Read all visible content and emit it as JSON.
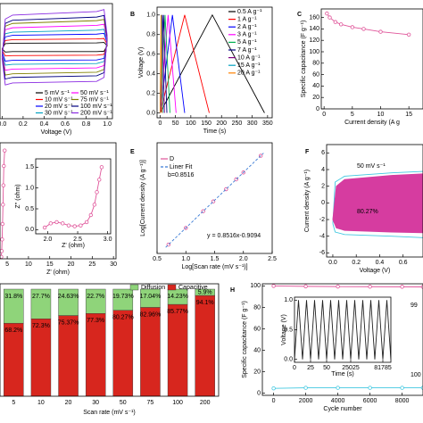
{
  "chart_data": [
    {
      "type": "line",
      "xlabel": "Voltage (V)",
      "xlim": [
        -0.02,
        1.05
      ],
      "ylim": [
        -1.8,
        1.1
      ],
      "xticks": [
        {
          "value": 0,
          "label": "0.0"
        },
        0.2,
        0.4,
        0.6,
        0.8,
        {
          "value": 1,
          "label": "1.0"
        }
      ],
      "x": [
        0,
        0.03,
        0.1,
        0.9,
        0.97,
        1,
        0.97,
        0.9,
        0.1,
        0.03,
        0
      ],
      "series": [
        {
          "name": "5 mV s⁻¹",
          "color": "#000000",
          "values": [
            -0.04,
            0.09,
            0.1,
            0.11,
            0.12,
            0.04,
            -0.1,
            -0.11,
            -0.11,
            -0.12,
            -0.04
          ]
        },
        {
          "name": "10 mV s⁻¹",
          "color": "#ff0000",
          "values": [
            -0.07,
            0.17,
            0.19,
            0.21,
            0.22,
            0.07,
            -0.18,
            -0.2,
            -0.21,
            -0.22,
            -0.07
          ]
        },
        {
          "name": "20 mV s⁻¹",
          "color": "#0000ff",
          "values": [
            -0.11,
            0.26,
            0.3,
            0.33,
            0.35,
            0.11,
            -0.28,
            -0.32,
            -0.33,
            -0.35,
            -0.11
          ]
        },
        {
          "name": "30 mV s⁻¹",
          "color": "#00a0c0",
          "values": [
            -0.14,
            0.34,
            0.38,
            0.43,
            0.45,
            0.14,
            -0.36,
            -0.41,
            -0.43,
            -0.45,
            -0.14
          ]
        },
        {
          "name": "50 mV s⁻¹",
          "color": "#ff00ff",
          "values": [
            -0.17,
            0.44,
            0.49,
            0.55,
            0.58,
            0.17,
            -0.46,
            -0.52,
            -0.55,
            -0.58,
            -0.17
          ]
        },
        {
          "name": "75 mV s⁻¹",
          "color": "#808000",
          "values": [
            -0.21,
            0.53,
            0.6,
            0.67,
            0.7,
            0.21,
            -0.56,
            -0.63,
            -0.67,
            -0.7,
            -0.21
          ]
        },
        {
          "name": "100 mV s⁻¹",
          "color": "#000080",
          "values": [
            -0.24,
            0.6,
            0.68,
            0.76,
            0.8,
            0.24,
            -0.64,
            -0.72,
            -0.76,
            -0.8,
            -0.24
          ]
        },
        {
          "name": "200 mV s⁻¹",
          "color": "#8a2be2",
          "values": [
            -0.29,
            0.71,
            0.81,
            0.9,
            0.95,
            0.29,
            -0.76,
            -0.86,
            -0.9,
            -0.95,
            -0.29
          ]
        }
      ]
    },
    {
      "type": "line",
      "panel_label": "B",
      "xlabel": "Time (s)",
      "ylabel": "Voltage (V)",
      "xlim": [
        -10,
        365
      ],
      "ylim": [
        -0.05,
        1.08
      ],
      "xticks": [
        0,
        50,
        100,
        150,
        200,
        250,
        300,
        350
      ],
      "yticks": [
        {
          "value": 0,
          "label": "0.0"
        },
        0.2,
        0.4,
        0.6,
        0.8,
        {
          "value": 1,
          "label": "1.0"
        }
      ],
      "series": [
        {
          "name": "0.5 A g⁻¹",
          "color": "#000000",
          "x": [
            0,
            170,
            340
          ],
          "values": [
            0,
            1,
            0
          ]
        },
        {
          "name": "1 A g⁻¹",
          "color": "#ff0000",
          "x": [
            0,
            80,
            160
          ],
          "values": [
            0,
            1,
            0
          ]
        },
        {
          "name": "2 A g⁻¹",
          "color": "#0000ff",
          "x": [
            0,
            40,
            80
          ],
          "values": [
            0,
            1,
            0
          ]
        },
        {
          "name": "3 A g⁻¹",
          "color": "#ff00ff",
          "x": [
            0,
            26,
            52
          ],
          "values": [
            0,
            1,
            0
          ]
        },
        {
          "name": "5 A g⁻¹",
          "color": "#00b050",
          "x": [
            0,
            16,
            32
          ],
          "values": [
            0,
            1,
            0
          ]
        },
        {
          "name": "7 A g⁻¹",
          "color": "#000080",
          "x": [
            0,
            11,
            22
          ],
          "values": [
            0,
            1,
            0
          ]
        },
        {
          "name": "10 A g⁻¹",
          "color": "#800080",
          "x": [
            0,
            7,
            14
          ],
          "values": [
            0,
            1,
            0
          ]
        },
        {
          "name": "15 A g⁻¹",
          "color": "#00a0c0",
          "x": [
            0,
            5,
            10
          ],
          "values": [
            0,
            1,
            0
          ]
        },
        {
          "name": "20 A g⁻¹",
          "color": "#ff8000",
          "x": [
            0,
            3,
            6
          ],
          "values": [
            0,
            1,
            0
          ]
        }
      ]
    },
    {
      "type": "line",
      "panel_label": "C",
      "xlabel": "Current density (A g",
      "ylabel": "Specific capacitance (F g⁻¹)",
      "xlim": [
        -0.5,
        17.5
      ],
      "ylim": [
        0,
        175
      ],
      "xticks": [
        0,
        5,
        10,
        15
      ],
      "yticks": [
        0,
        20,
        40,
        60,
        80,
        100,
        120,
        140,
        160
      ],
      "series": [
        {
          "color": "#e0559a",
          "marker": true,
          "x": [
            0.5,
            1,
            2,
            3,
            5,
            7,
            10,
            15
          ],
          "values": [
            167,
            160,
            152,
            148,
            143,
            140,
            135,
            130
          ]
        }
      ]
    },
    {
      "type": "line",
      "xlabel": "Z' (ohm)",
      "xlim": [
        3.3,
        30.6
      ],
      "ylim": [
        0,
        30
      ],
      "xticks": [
        5,
        10,
        15,
        20,
        25,
        30
      ],
      "series": [
        {
          "color": "#e0559a",
          "marker": true,
          "x": [
            3.6,
            3.7,
            3.8,
            3.9,
            4.0,
            4.1,
            4.2,
            4.4
          ],
          "values": [
            0.5,
            2,
            5,
            9,
            14,
            19,
            24,
            28
          ]
        }
      ]
    },
    {
      "type": "line",
      "xlabel": "Z' (ohm)",
      "ylabel": "Z'' (ohm)",
      "xlim": [
        1.8,
        3.05
      ],
      "ylim": [
        -0.1,
        1.7
      ],
      "xticks": [
        {
          "value": 2,
          "label": "2.0"
        },
        2.5,
        {
          "value": 3,
          "label": "3.0"
        }
      ],
      "yticks": [
        {
          "value": 0,
          "label": "0.0"
        },
        0.5,
        {
          "value": 1,
          "label": "1.0"
        },
        1.5
      ],
      "series": [
        {
          "color": "#e0559a",
          "marker": true,
          "x": [
            1.95,
            2.05,
            2.15,
            2.25,
            2.35,
            2.45,
            2.55,
            2.65,
            2.72,
            2.78,
            2.82,
            2.86,
            2.9
          ],
          "values": [
            0.05,
            0.15,
            0.18,
            0.15,
            0.1,
            0.08,
            0.1,
            0.18,
            0.35,
            0.6,
            0.9,
            1.2,
            1.5
          ]
        }
      ]
    },
    {
      "type": "line",
      "panel_label": "E",
      "xlabel": "Log[Scan rate (mV s⁻¹)]",
      "ylabel": "Log[Current density (A g⁻¹)]",
      "xlim": [
        0.5,
        2.5
      ],
      "ylim": [
        -0.45,
        1.25
      ],
      "xticks": [
        0.5,
        {
          "value": 1,
          "label": "1.0"
        },
        1.5,
        {
          "value": 2,
          "label": "2.0"
        },
        2.5
      ],
      "annotations": [
        "b=0.8516",
        "y = 0.8516x-0.9094"
      ],
      "series": [
        {
          "name": "D",
          "color": "#e0559a",
          "marker": true,
          "nolines": true,
          "x": [
            0.699,
            1,
            1.301,
            1.477,
            1.699,
            1.875,
            2,
            2.301
          ],
          "values": [
            -0.314,
            -0.058,
            0.198,
            0.349,
            0.537,
            0.688,
            0.794,
            1.05
          ]
        },
        {
          "name": "Liner Fit",
          "color": "#3a7bd5",
          "dash": true,
          "x": [
            0.65,
            2.35
          ],
          "values": [
            -0.356,
            1.092
          ]
        }
      ]
    },
    {
      "type": "line",
      "panel_label": "F",
      "xlabel": "Voltage (V)",
      "ylabel": "Current density (A g⁻¹)",
      "xlim": [
        -0.053,
        0.77
      ],
      "ylim": [
        -6.5,
        7
      ],
      "xticks": [
        {
          "value": 0,
          "label": "0.0"
        },
        0.2,
        0.4,
        0.6
      ],
      "yticks": [
        -6,
        -4,
        -2,
        0,
        2,
        4,
        6
      ],
      "annotations": [
        "50 mV s⁻¹",
        "80.27%"
      ],
      "series": [
        {
          "color": "#40c8e0",
          "x": [
            0,
            0.02,
            0.1,
            0.5,
            0.8,
            0.8,
            0.5,
            0.1,
            0.02,
            0
          ],
          "values": [
            -2.5,
            2.5,
            3.2,
            3.6,
            3.8,
            -4.2,
            -4,
            -3.8,
            -3.5,
            -2.5
          ]
        },
        {
          "color": "#d63ca0",
          "fill": true,
          "x": [
            0,
            0.03,
            0.1,
            0.5,
            0.8,
            0.8,
            0.5,
            0.1,
            0.03,
            0
          ],
          "values": [
            -2,
            2,
            2.8,
            3.3,
            3.5,
            -3.6,
            -3.5,
            -3.3,
            -3,
            -2
          ]
        }
      ]
    },
    {
      "type": "bar",
      "xlabel": "Scan rate (mV s⁻¹)",
      "ylim": [
        0,
        105
      ],
      "categories": [
        "5",
        "10",
        "20",
        "30",
        "50",
        "75",
        "100",
        "200"
      ],
      "series": [
        {
          "name": "Diffusion",
          "color": "#8fd47a",
          "values": [
            31.8,
            27.7,
            24.63,
            22.7,
            19.73,
            17.04,
            14.23,
            5.9
          ],
          "value_labels": [
            "31.8%",
            "27.7%",
            "24.63%",
            "22.7%",
            "19.73%",
            "17.04%",
            "14.23%",
            "5.9%"
          ]
        },
        {
          "name": "Capacitive",
          "color": "#d7261e",
          "values": [
            68.2,
            72.3,
            75.37,
            77.3,
            80.27,
            82.96,
            85.77,
            94.1
          ],
          "value_labels": [
            "68.2%",
            "72.3%",
            "75.37%",
            "77.3%",
            "80.27%",
            "82.96%",
            "85.77%",
            "94.1%"
          ]
        }
      ]
    },
    {
      "type": "line",
      "panel_label": "H",
      "xlabel": "Cycle number",
      "ylabel": "Specific capacitance (F g⁻¹)",
      "xlim": [
        -700,
        9300
      ],
      "ylim": [
        -2,
        102
      ],
      "xticks": [
        0,
        2000,
        4000,
        6000,
        8000
      ],
      "yticks": [
        0,
        20,
        40,
        60,
        80,
        100
      ],
      "annotations": [
        "99",
        "100"
      ],
      "series": [
        {
          "color": "#e0559a",
          "marker": true,
          "x": [
            0,
            2000,
            4000,
            6000,
            8000,
            9300
          ],
          "values": [
            100,
            99.6,
            99.4,
            99.3,
            99.2,
            99.1
          ]
        },
        {
          "color": "#40c8e0",
          "marker": true,
          "x": [
            0,
            2000,
            4000,
            6000,
            8000,
            9300
          ],
          "values": [
            4.5,
            5,
            5,
            5,
            5,
            5
          ]
        }
      ]
    },
    {
      "type": "line",
      "xlabel": "Time (s)",
      "ylabel": "Voltage (V)",
      "xlim": [
        0,
        6
      ],
      "ylim": [
        -0.05,
        1.05
      ],
      "xticks": [
        0,
        {
          "value": 1,
          "label": "25"
        },
        {
          "value": 2,
          "label": "50"
        },
        {
          "value": 3.5,
          "label": "25025"
        },
        {
          "value": 5.5,
          "label": "81785"
        }
      ],
      "yticks": [
        {
          "value": 0,
          "label": "0.0"
        },
        0.5,
        {
          "value": 1,
          "label": "1.0"
        }
      ],
      "series": [
        {
          "color": "#222222",
          "x": [
            0,
            0.25,
            0.5,
            0.75,
            1,
            1.25,
            1.5,
            1.75,
            2,
            2.25,
            2.5,
            2.75,
            3,
            3.25,
            3.5,
            3.75,
            4,
            4.25,
            4.5,
            4.75,
            5,
            5.25,
            5.5,
            5.75,
            6
          ],
          "values": [
            0,
            1,
            0,
            1,
            0,
            1,
            0,
            1,
            0,
            1,
            0,
            1,
            0,
            1,
            0,
            1,
            0,
            1,
            0,
            1,
            0,
            1,
            0,
            1,
            0
          ]
        }
      ]
    }
  ]
}
